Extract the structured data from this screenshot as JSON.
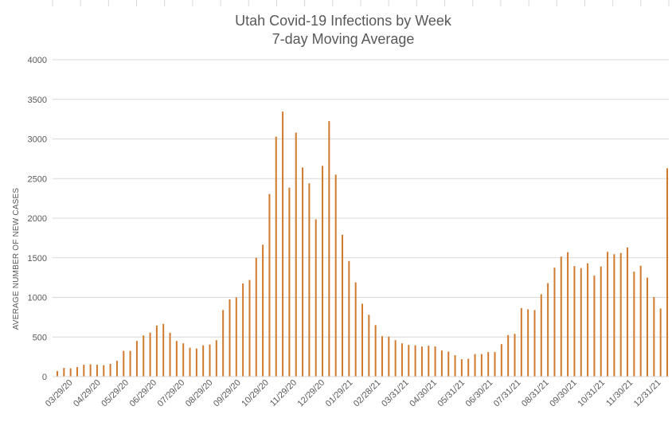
{
  "chart_data": {
    "type": "bar",
    "title": "Utah Covid-19 Infections by Week",
    "subtitle": "7-day Moving Average",
    "xlabel": "",
    "ylabel": "AVERAGE NUMBER OF NEW  CASES",
    "ylim": [
      0,
      4000
    ],
    "yticks": [
      0,
      500,
      1000,
      1500,
      2000,
      2500,
      3000,
      3500,
      4000
    ],
    "xtick_labels": [
      "03/29/20",
      "04/29/20",
      "05/29/20",
      "06/29/20",
      "07/29/20",
      "08/29/20",
      "09/29/20",
      "10/29/20",
      "11/29/20",
      "12/29/20",
      "01/29/21",
      "02/28/21",
      "03/31/21",
      "04/30/21",
      "05/31/21",
      "06/30/21",
      "07/31/21",
      "08/31/21",
      "09/30/21",
      "10/31/21",
      "11/30/21",
      "12/31/21"
    ],
    "grid": true,
    "bar_color": "#d07a2d",
    "series": [
      {
        "values": [
          70,
          110,
          105,
          120,
          150,
          155,
          150,
          145,
          160,
          200,
          325,
          325,
          450,
          520,
          555,
          645,
          665,
          555,
          450,
          420,
          365,
          355,
          395,
          405,
          460,
          840,
          975,
          1000,
          1175,
          1220,
          1500,
          1665,
          2305,
          3030,
          3345,
          2385,
          3080,
          2640,
          2440,
          1985,
          2660,
          3225,
          2550,
          1790,
          1460,
          1190,
          920,
          780,
          650,
          510,
          505,
          460,
          420,
          400,
          395,
          380,
          390,
          380,
          330,
          315,
          270,
          220,
          225,
          285,
          285,
          310,
          310,
          410,
          525,
          540,
          865,
          850,
          840,
          1040,
          1180,
          1375,
          1515,
          1570,
          1395,
          1370,
          1430,
          1275,
          1390,
          1575,
          1545,
          1560,
          1630,
          1325,
          1400,
          1250,
          1005,
          860,
          2630
        ]
      }
    ]
  }
}
